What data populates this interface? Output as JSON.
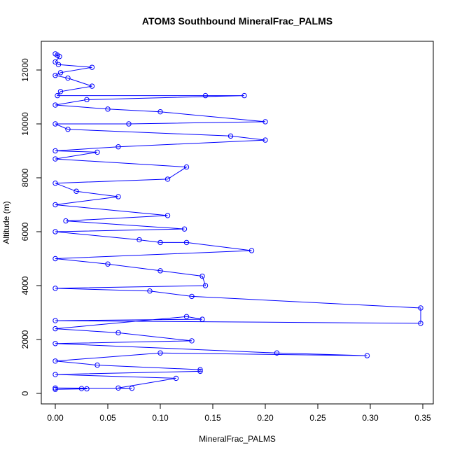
{
  "chart_data": {
    "type": "scatter",
    "title": "ATOM3 Southbound MineralFrac_PALMS",
    "xlabel": "MineralFrac_PALMS",
    "ylabel": "Altitude (m)",
    "xlim": [
      0,
      0.35
    ],
    "ylim": [
      0,
      12600
    ],
    "xticks": [
      "0.00",
      "0.05",
      "0.10",
      "0.15",
      "0.20",
      "0.25",
      "0.30",
      "0.35"
    ],
    "xtick_values": [
      0,
      0.05,
      0.1,
      0.15,
      0.2,
      0.25,
      0.3,
      0.35
    ],
    "yticks": [
      "0",
      "2000",
      "4000",
      "6000",
      "8000",
      "10000",
      "12000"
    ],
    "ytick_values": [
      0,
      2000,
      4000,
      6000,
      8000,
      10000,
      12000
    ],
    "lines_and_points": true,
    "series_color": "#0000ff",
    "series": [
      {
        "values": [
          [
            0.0,
            12600
          ],
          [
            0.002,
            12550
          ],
          [
            0.004,
            12500
          ],
          [
            0.0,
            12300
          ],
          [
            0.003,
            12200
          ],
          [
            0.035,
            12100
          ],
          [
            0.005,
            11900
          ],
          [
            0.0,
            11800
          ],
          [
            0.012,
            11700
          ],
          [
            0.035,
            11400
          ],
          [
            0.005,
            11200
          ],
          [
            0.002,
            11050
          ],
          [
            0.143,
            11050
          ],
          [
            0.18,
            11050
          ],
          [
            0.03,
            10900
          ],
          [
            0.0,
            10700
          ],
          [
            0.05,
            10550
          ],
          [
            0.1,
            10450
          ],
          [
            0.2,
            10080
          ],
          [
            0.07,
            10000
          ],
          [
            0.0,
            10000
          ],
          [
            0.012,
            9800
          ],
          [
            0.167,
            9550
          ],
          [
            0.2,
            9400
          ],
          [
            0.06,
            9150
          ],
          [
            0.0,
            9000
          ],
          [
            0.04,
            8950
          ],
          [
            0.0,
            8700
          ],
          [
            0.125,
            8400
          ],
          [
            0.107,
            7950
          ],
          [
            0.0,
            7800
          ],
          [
            0.02,
            7500
          ],
          [
            0.06,
            7300
          ],
          [
            0.0,
            7000
          ],
          [
            0.107,
            6600
          ],
          [
            0.01,
            6400
          ],
          [
            0.123,
            6100
          ],
          [
            0.0,
            6000
          ],
          [
            0.08,
            5700
          ],
          [
            0.1,
            5600
          ],
          [
            0.125,
            5600
          ],
          [
            0.187,
            5300
          ],
          [
            0.0,
            5000
          ],
          [
            0.05,
            4800
          ],
          [
            0.1,
            4550
          ],
          [
            0.14,
            4350
          ],
          [
            0.143,
            4000
          ],
          [
            0.0,
            3900
          ],
          [
            0.09,
            3800
          ],
          [
            0.13,
            3600
          ],
          [
            0.348,
            3170
          ],
          [
            0.348,
            2600
          ],
          [
            0.0,
            2700
          ],
          [
            0.14,
            2750
          ],
          [
            0.125,
            2850
          ],
          [
            0.0,
            2400
          ],
          [
            0.06,
            2250
          ],
          [
            0.13,
            1950
          ],
          [
            0.0,
            1850
          ],
          [
            0.211,
            1500
          ],
          [
            0.297,
            1400
          ],
          [
            0.1,
            1500
          ],
          [
            0.0,
            1200
          ],
          [
            0.04,
            1050
          ],
          [
            0.138,
            880
          ],
          [
            0.138,
            820
          ],
          [
            0.0,
            700
          ],
          [
            0.115,
            560
          ],
          [
            0.06,
            200
          ],
          [
            0.073,
            190
          ],
          [
            0.0,
            200
          ],
          [
            0.025,
            180
          ],
          [
            0.03,
            170
          ],
          [
            0.0,
            150
          ]
        ]
      }
    ]
  }
}
